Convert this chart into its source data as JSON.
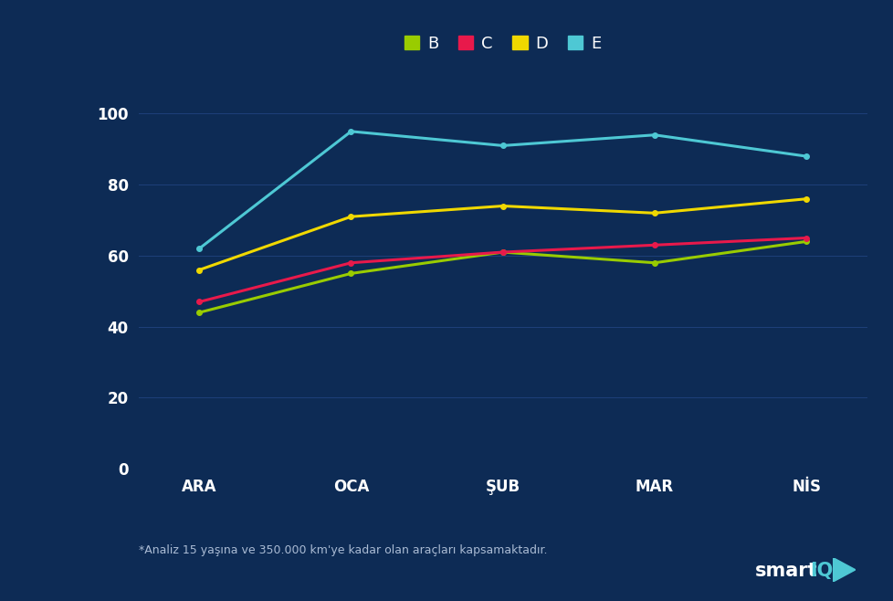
{
  "categories": [
    "ARA",
    "OCA",
    "ŞUB",
    "MAR",
    "NİS"
  ],
  "series": {
    "B": {
      "values": [
        44,
        55,
        61,
        58,
        64
      ],
      "color": "#99cc00"
    },
    "C": {
      "values": [
        47,
        58,
        61,
        63,
        65
      ],
      "color": "#e8194b"
    },
    "D": {
      "values": [
        56,
        71,
        74,
        72,
        76
      ],
      "color": "#f0d800"
    },
    "E": {
      "values": [
        62,
        95,
        91,
        94,
        88
      ],
      "color": "#4ec8d4"
    }
  },
  "ylim": [
    0,
    110
  ],
  "yticks": [
    0,
    20,
    40,
    60,
    80,
    100
  ],
  "background_color": "#0d2b55",
  "plot_bg_color": "#0d2b55",
  "grid_color": "#1e407a",
  "text_color": "#ffffff",
  "footnote": "*Analiz 15 yaşına ve 350.000 km'ye kadar olan araçları kapsamaktadır.",
  "footnote_color": "#aabbd4",
  "line_width": 2.2,
  "marker": "o",
  "marker_size": 4,
  "legend_order": [
    "B",
    "C",
    "D",
    "E"
  ]
}
